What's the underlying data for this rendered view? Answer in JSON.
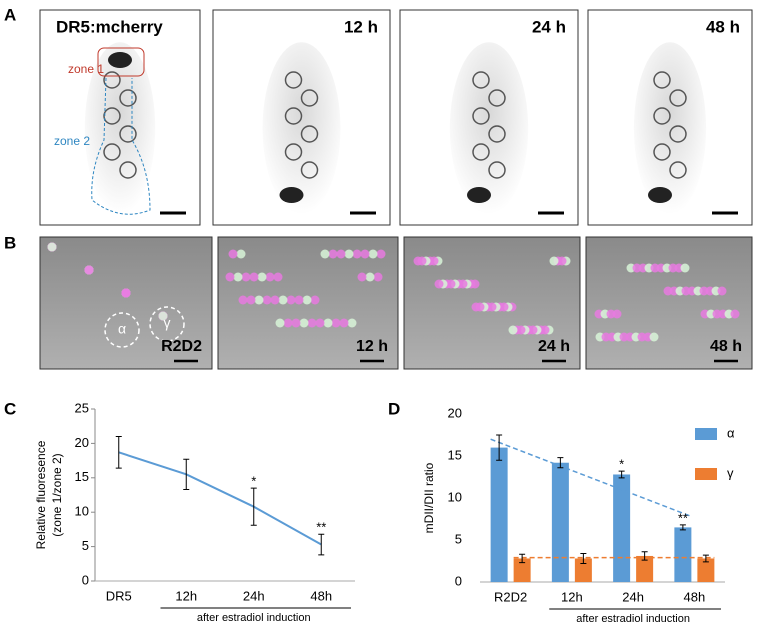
{
  "panel_labels": [
    "A",
    "B",
    "C",
    "D"
  ],
  "panel_a": {
    "images": [
      {
        "label": "DR5:mcherry",
        "zones": [
          "zone 1",
          "zone 2"
        ]
      },
      {
        "label": "12 h"
      },
      {
        "label": "24 h"
      },
      {
        "label": "48 h"
      }
    ]
  },
  "panel_b": {
    "images": [
      {
        "label": "R2D2",
        "regions": [
          "α",
          "γ"
        ]
      },
      {
        "label": "12 h"
      },
      {
        "label": "24 h"
      },
      {
        "label": "48 h"
      }
    ]
  },
  "chart_data": [
    {
      "type": "line",
      "ylabel": [
        "Relative fluoresence",
        "(zone 1/zone 2)"
      ],
      "categories": [
        "DR5",
        "12h",
        "24h",
        "48h"
      ],
      "group_label": "after estradiol induction",
      "series": [
        {
          "color": "#5b9bd5",
          "values": [
            18.7,
            15.5,
            10.8,
            5.3
          ],
          "errors": [
            2.3,
            2.2,
            2.7,
            1.5
          ]
        }
      ],
      "annotations": [
        {
          "text": "*",
          "category": "24h"
        },
        {
          "text": "**",
          "category": "48h"
        }
      ],
      "ylim": [
        0,
        25
      ],
      "yticks": [
        0,
        5,
        10,
        15,
        20,
        25
      ]
    },
    {
      "type": "bar",
      "ylabel": [
        "mDII/DII ratio"
      ],
      "categories": [
        "R2D2",
        "12h",
        "24h",
        "48h"
      ],
      "group_label": "after estradiol induction",
      "series": [
        {
          "name": "α",
          "color": "#5b9bd5",
          "values": [
            16,
            14.2,
            12.8,
            6.5
          ],
          "errors": [
            1.5,
            0.6,
            0.4,
            0.3
          ],
          "trend": [
            17,
            7.8
          ]
        },
        {
          "name": "γ",
          "color": "#ed7d31",
          "values": [
            2.8,
            2.8,
            3.1,
            2.8
          ],
          "errors": [
            0.5,
            0.6,
            0.5,
            0.4
          ],
          "trend": [
            2.9,
            2.9
          ]
        }
      ],
      "annotations": [
        {
          "text": "*",
          "category": "24h"
        },
        {
          "text": "**",
          "category": "48h"
        }
      ],
      "legend": "upper right",
      "ylim": [
        0,
        20
      ],
      "yticks": [
        0,
        5,
        10,
        15,
        20
      ]
    }
  ]
}
